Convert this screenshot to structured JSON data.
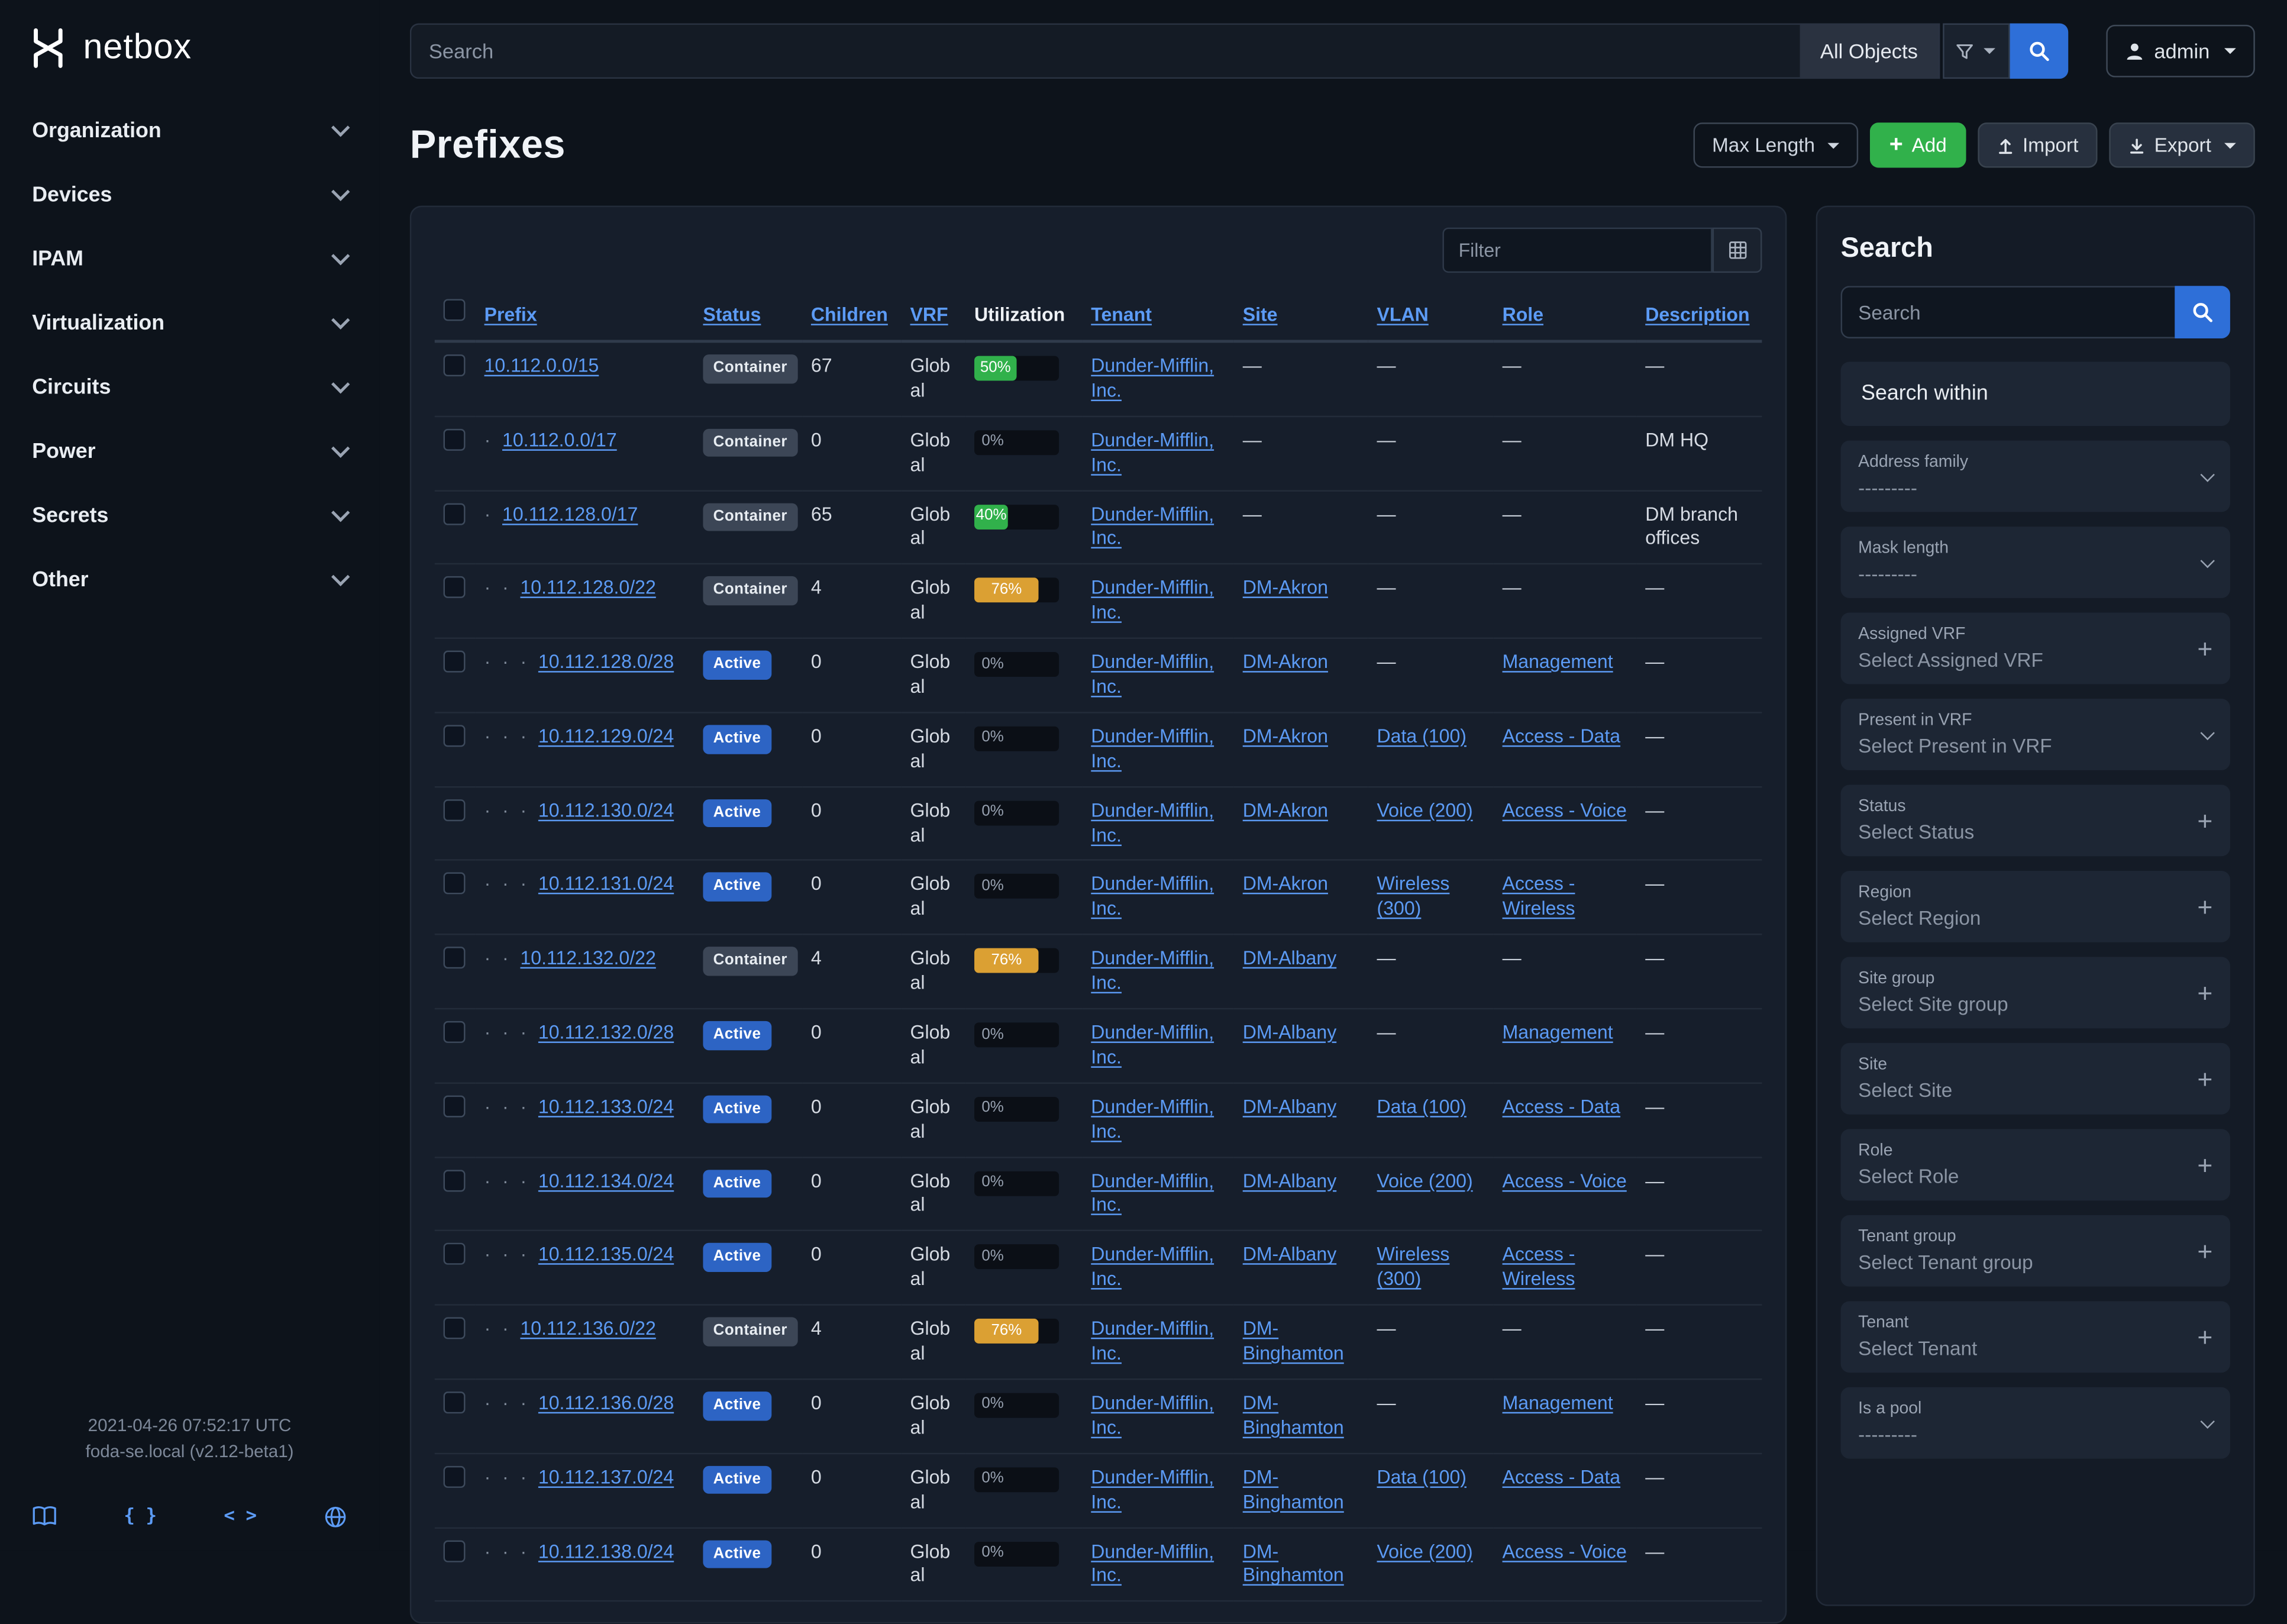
{
  "brand": {
    "name": "netbox"
  },
  "topbar": {
    "search_placeholder": "Search",
    "scope_button": "All Objects",
    "user_button": "admin"
  },
  "sidebar": {
    "items": [
      {
        "label": "Organization"
      },
      {
        "label": "Devices"
      },
      {
        "label": "IPAM"
      },
      {
        "label": "Virtualization"
      },
      {
        "label": "Circuits"
      },
      {
        "label": "Power"
      },
      {
        "label": "Secrets"
      },
      {
        "label": "Other"
      }
    ],
    "footer": {
      "timestamp": "2021-04-26 07:52:17 UTC",
      "version": "foda-se.local (v2.12-beta1)",
      "icons": [
        "docs-book",
        "api-braces",
        "code-brackets",
        "globe"
      ]
    }
  },
  "page": {
    "title": "Prefixes",
    "actions": {
      "max_length": "Max Length",
      "add": "Add",
      "import": "Import",
      "export": "Export"
    }
  },
  "table": {
    "filter_placeholder": "Filter",
    "empty_value": "—",
    "columns": [
      {
        "label": "Prefix",
        "sortable": true
      },
      {
        "label": "Status",
        "sortable": true
      },
      {
        "label": "Children",
        "sortable": true
      },
      {
        "label": "VRF",
        "sortable": true
      },
      {
        "label": "Utilization",
        "sortable": false
      },
      {
        "label": "Tenant",
        "sortable": true
      },
      {
        "label": "Site",
        "sortable": true
      },
      {
        "label": "VLAN",
        "sortable": true
      },
      {
        "label": "Role",
        "sortable": true
      },
      {
        "label": "Description",
        "sortable": true
      }
    ],
    "rows": [
      {
        "depth": 0,
        "prefix": "10.112.0.0/15",
        "status": "Container",
        "children": "67",
        "vrf": "Global",
        "util": 50,
        "tenant": "Dunder-Mifflin, Inc.",
        "site": "",
        "vlan": "",
        "role": "",
        "description": ""
      },
      {
        "depth": 1,
        "prefix": "10.112.0.0/17",
        "status": "Container",
        "children": "0",
        "vrf": "Global",
        "util": 0,
        "tenant": "Dunder-Mifflin, Inc.",
        "site": "",
        "vlan": "",
        "role": "",
        "description": "DM HQ"
      },
      {
        "depth": 1,
        "prefix": "10.112.128.0/17",
        "status": "Container",
        "children": "65",
        "vrf": "Global",
        "util": 40,
        "tenant": "Dunder-Mifflin, Inc.",
        "site": "",
        "vlan": "",
        "role": "",
        "description": "DM branch offices"
      },
      {
        "depth": 2,
        "prefix": "10.112.128.0/22",
        "status": "Container",
        "children": "4",
        "vrf": "Global",
        "util": 76,
        "tenant": "Dunder-Mifflin, Inc.",
        "site": "DM-Akron",
        "vlan": "",
        "role": "",
        "description": ""
      },
      {
        "depth": 3,
        "prefix": "10.112.128.0/28",
        "status": "Active",
        "children": "0",
        "vrf": "Global",
        "util": 0,
        "tenant": "Dunder-Mifflin, Inc.",
        "site": "DM-Akron",
        "vlan": "",
        "role": "Management",
        "description": ""
      },
      {
        "depth": 3,
        "prefix": "10.112.129.0/24",
        "status": "Active",
        "children": "0",
        "vrf": "Global",
        "util": 0,
        "tenant": "Dunder-Mifflin, Inc.",
        "site": "DM-Akron",
        "vlan": "Data (100)",
        "role": "Access - Data",
        "description": ""
      },
      {
        "depth": 3,
        "prefix": "10.112.130.0/24",
        "status": "Active",
        "children": "0",
        "vrf": "Global",
        "util": 0,
        "tenant": "Dunder-Mifflin, Inc.",
        "site": "DM-Akron",
        "vlan": "Voice (200)",
        "role": "Access - Voice",
        "description": ""
      },
      {
        "depth": 3,
        "prefix": "10.112.131.0/24",
        "status": "Active",
        "children": "0",
        "vrf": "Global",
        "util": 0,
        "tenant": "Dunder-Mifflin, Inc.",
        "site": "DM-Akron",
        "vlan": "Wireless (300)",
        "role": "Access - Wireless",
        "description": ""
      },
      {
        "depth": 2,
        "prefix": "10.112.132.0/22",
        "status": "Container",
        "children": "4",
        "vrf": "Global",
        "util": 76,
        "tenant": "Dunder-Mifflin, Inc.",
        "site": "DM-Albany",
        "vlan": "",
        "role": "",
        "description": ""
      },
      {
        "depth": 3,
        "prefix": "10.112.132.0/28",
        "status": "Active",
        "children": "0",
        "vrf": "Global",
        "util": 0,
        "tenant": "Dunder-Mifflin, Inc.",
        "site": "DM-Albany",
        "vlan": "",
        "role": "Management",
        "description": ""
      },
      {
        "depth": 3,
        "prefix": "10.112.133.0/24",
        "status": "Active",
        "children": "0",
        "vrf": "Global",
        "util": 0,
        "tenant": "Dunder-Mifflin, Inc.",
        "site": "DM-Albany",
        "vlan": "Data (100)",
        "role": "Access - Data",
        "description": ""
      },
      {
        "depth": 3,
        "prefix": "10.112.134.0/24",
        "status": "Active",
        "children": "0",
        "vrf": "Global",
        "util": 0,
        "tenant": "Dunder-Mifflin, Inc.",
        "site": "DM-Albany",
        "vlan": "Voice (200)",
        "role": "Access - Voice",
        "description": ""
      },
      {
        "depth": 3,
        "prefix": "10.112.135.0/24",
        "status": "Active",
        "children": "0",
        "vrf": "Global",
        "util": 0,
        "tenant": "Dunder-Mifflin, Inc.",
        "site": "DM-Albany",
        "vlan": "Wireless (300)",
        "role": "Access - Wireless",
        "description": ""
      },
      {
        "depth": 2,
        "prefix": "10.112.136.0/22",
        "status": "Container",
        "children": "4",
        "vrf": "Global",
        "util": 76,
        "tenant": "Dunder-Mifflin, Inc.",
        "site": "DM-Binghamton",
        "vlan": "",
        "role": "",
        "description": ""
      },
      {
        "depth": 3,
        "prefix": "10.112.136.0/28",
        "status": "Active",
        "children": "0",
        "vrf": "Global",
        "util": 0,
        "tenant": "Dunder-Mifflin, Inc.",
        "site": "DM-Binghamton",
        "vlan": "",
        "role": "Management",
        "description": ""
      },
      {
        "depth": 3,
        "prefix": "10.112.137.0/24",
        "status": "Active",
        "children": "0",
        "vrf": "Global",
        "util": 0,
        "tenant": "Dunder-Mifflin, Inc.",
        "site": "DM-Binghamton",
        "vlan": "Data (100)",
        "role": "Access - Data",
        "description": ""
      },
      {
        "depth": 3,
        "prefix": "10.112.138.0/24",
        "status": "Active",
        "children": "0",
        "vrf": "Global",
        "util": 0,
        "tenant": "Dunder-Mifflin, Inc.",
        "site": "DM-Binghamton",
        "vlan": "Voice (200)",
        "role": "Access - Voice",
        "description": ""
      }
    ]
  },
  "filters": {
    "title": "Search",
    "search_placeholder": "Search",
    "search_within_label": "Search within",
    "fields": [
      {
        "label": "Address family",
        "value": "---------",
        "control": "select"
      },
      {
        "label": "Mask length",
        "value": "---------",
        "control": "select"
      },
      {
        "label": "Assigned VRF",
        "value": "Select Assigned VRF",
        "control": "add"
      },
      {
        "label": "Present in VRF",
        "value": "Select Present in VRF",
        "control": "select"
      },
      {
        "label": "Status",
        "value": "Select Status",
        "control": "add"
      },
      {
        "label": "Region",
        "value": "Select Region",
        "control": "add"
      },
      {
        "label": "Site group",
        "value": "Select Site group",
        "control": "add"
      },
      {
        "label": "Site",
        "value": "Select Site",
        "control": "add"
      },
      {
        "label": "Role",
        "value": "Select Role",
        "control": "add"
      },
      {
        "label": "Tenant group",
        "value": "Select Tenant group",
        "control": "add"
      },
      {
        "label": "Tenant",
        "value": "Select Tenant",
        "control": "add"
      },
      {
        "label": "Is a pool",
        "value": "---------",
        "control": "select"
      }
    ]
  },
  "colors": {
    "accent_link": "#5c9bf5",
    "primary_button": "#2e6fd8",
    "add_button": "#31b14b",
    "util_success": "#31b14b",
    "util_warning": "#dba033",
    "badge_active": "#2d64c4",
    "badge_container": "#3c4656"
  }
}
